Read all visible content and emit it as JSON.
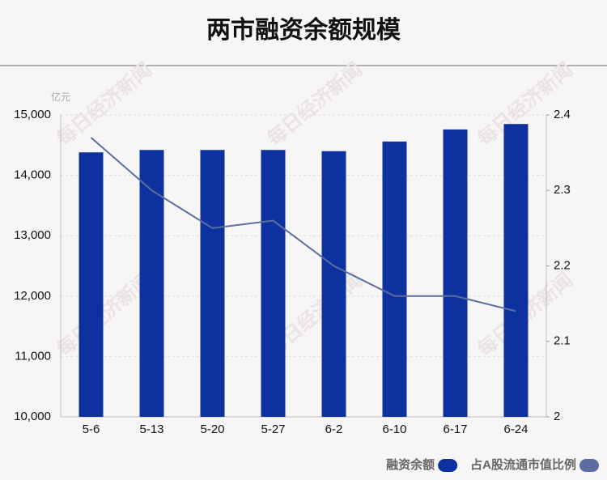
{
  "chart_data": {
    "type": "bar",
    "title": "两市融资余额规模",
    "y_label": "亿元",
    "watermark": "每日经济新闻",
    "categories": [
      "5-6",
      "5-13",
      "5-20",
      "5-27",
      "6-2",
      "6-10",
      "6-17",
      "6-24"
    ],
    "series": [
      {
        "name": "融资余额",
        "color": "#0d32a0",
        "values": [
          14380,
          14420,
          14420,
          14420,
          14400,
          14560,
          14760,
          14850
        ]
      },
      {
        "name": "占A股流通市值比例",
        "color": "#5b6e9f",
        "axis": "y2",
        "values": [
          2.37,
          2.3,
          2.25,
          2.26,
          2.2,
          2.16,
          2.16,
          2.14
        ]
      }
    ],
    "ylim": [
      10000,
      15000
    ],
    "yticks": [
      {
        "value": 10000,
        "label": "10,000"
      },
      {
        "value": 11000,
        "label": "11,000"
      },
      {
        "value": 12000,
        "label": "12,000"
      },
      {
        "value": 13000,
        "label": "13,000"
      },
      {
        "value": 14000,
        "label": "14,000"
      },
      {
        "value": 15000,
        "label": "15,000"
      }
    ],
    "y2lim": [
      2,
      2.4
    ],
    "y2ticks": [
      2,
      2.1,
      2.2,
      2.3,
      2.4
    ],
    "grid": true,
    "legend": "bottom-right"
  }
}
